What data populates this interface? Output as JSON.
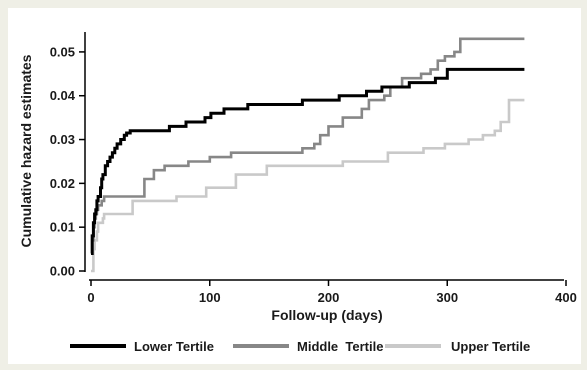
{
  "chart_data": {
    "type": "line",
    "title": "",
    "xlabel": "Follow-up (days)",
    "ylabel": "Cumulative hazard estimates",
    "xlim": [
      0,
      400
    ],
    "ylim": [
      0,
      0.055
    ],
    "xticks": [
      0,
      100,
      200,
      300,
      400
    ],
    "yticks": [
      0.0,
      0.01,
      0.02,
      0.03,
      0.04,
      0.05
    ],
    "xtick_labels": [
      "0",
      "100",
      "200",
      "300",
      "400"
    ],
    "ytick_labels": [
      "0.00",
      "0.01",
      "0.02",
      "0.03",
      "0.04",
      "0.05"
    ],
    "grid": false,
    "legend_position": "bottom",
    "step": true,
    "series": [
      {
        "name": "Lower Tertile",
        "color": "#000000",
        "x": [
          0,
          1,
          2,
          3,
          4,
          5,
          6,
          8,
          9,
          10,
          12,
          14,
          16,
          18,
          20,
          22,
          25,
          28,
          30,
          33,
          40,
          48,
          66,
          80,
          96,
          101,
          112,
          132,
          150,
          178,
          209,
          232,
          245,
          268,
          290,
          300,
          365
        ],
        "y": [
          0.004,
          0.008,
          0.011,
          0.013,
          0.014,
          0.016,
          0.017,
          0.019,
          0.021,
          0.022,
          0.024,
          0.025,
          0.026,
          0.027,
          0.028,
          0.029,
          0.03,
          0.031,
          0.0315,
          0.032,
          0.032,
          0.032,
          0.033,
          0.034,
          0.035,
          0.036,
          0.037,
          0.038,
          0.038,
          0.039,
          0.04,
          0.041,
          0.042,
          0.043,
          0.044,
          0.046,
          0.046
        ]
      },
      {
        "name": "Middle  Tertile",
        "color": "#878787",
        "x": [
          0,
          1,
          2,
          3,
          4,
          5,
          6,
          9,
          11,
          25,
          45,
          53,
          62,
          82,
          100,
          118,
          178,
          188,
          193,
          200,
          212,
          228,
          234,
          247,
          252,
          262,
          278,
          286,
          292,
          298,
          306,
          311,
          365
        ],
        "y": [
          0.004,
          0.007,
          0.01,
          0.012,
          0.013,
          0.014,
          0.015,
          0.016,
          0.017,
          0.017,
          0.021,
          0.023,
          0.024,
          0.025,
          0.026,
          0.027,
          0.028,
          0.029,
          0.031,
          0.033,
          0.035,
          0.037,
          0.039,
          0.04,
          0.042,
          0.044,
          0.045,
          0.046,
          0.048,
          0.049,
          0.05,
          0.053,
          0.053
        ]
      },
      {
        "name": "Upper Tertile",
        "color": "#c9c9c9",
        "x": [
          0,
          2,
          3,
          5,
          6,
          10,
          11,
          22,
          35,
          72,
          97,
          122,
          148,
          212,
          250,
          280,
          298,
          318,
          330,
          340,
          345,
          352,
          365
        ],
        "y": [
          0.0,
          0.005,
          0.007,
          0.009,
          0.011,
          0.012,
          0.013,
          0.013,
          0.016,
          0.017,
          0.019,
          0.022,
          0.024,
          0.025,
          0.027,
          0.028,
          0.029,
          0.03,
          0.031,
          0.032,
          0.034,
          0.039,
          0.039
        ]
      }
    ]
  }
}
